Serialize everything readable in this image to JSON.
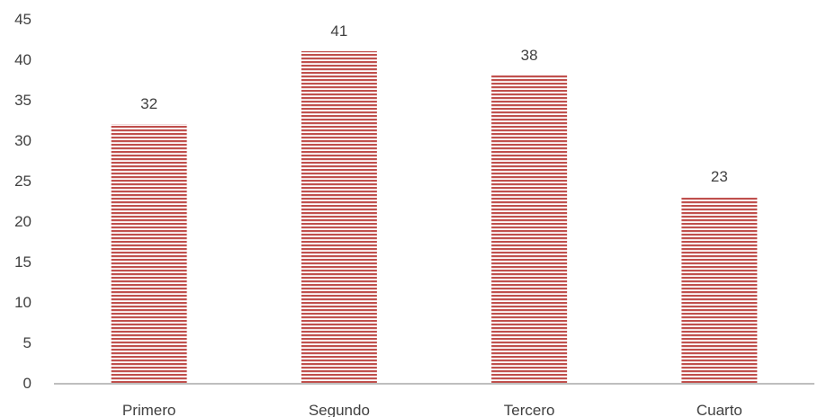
{
  "chart_data": {
    "type": "bar",
    "title": "",
    "xlabel": "",
    "ylabel": "",
    "categories": [
      "Primero",
      "Segundo",
      "Tercero",
      "Cuarto"
    ],
    "values": [
      32,
      41,
      38,
      23
    ],
    "data_labels": [
      "32",
      "41",
      "38",
      "23"
    ],
    "ylim": [
      0,
      45
    ],
    "yticks": [
      0,
      5,
      10,
      15,
      20,
      25,
      30,
      35,
      40,
      45
    ],
    "ytick_labels": [
      "0",
      "5",
      "10",
      "15",
      "20",
      "25",
      "30",
      "35",
      "40",
      "45"
    ],
    "grid": false,
    "legend": "none",
    "bar_color": "#c0504d",
    "bar_pattern": "horizontal-stripes",
    "axis_color": "#bfbfbf"
  }
}
